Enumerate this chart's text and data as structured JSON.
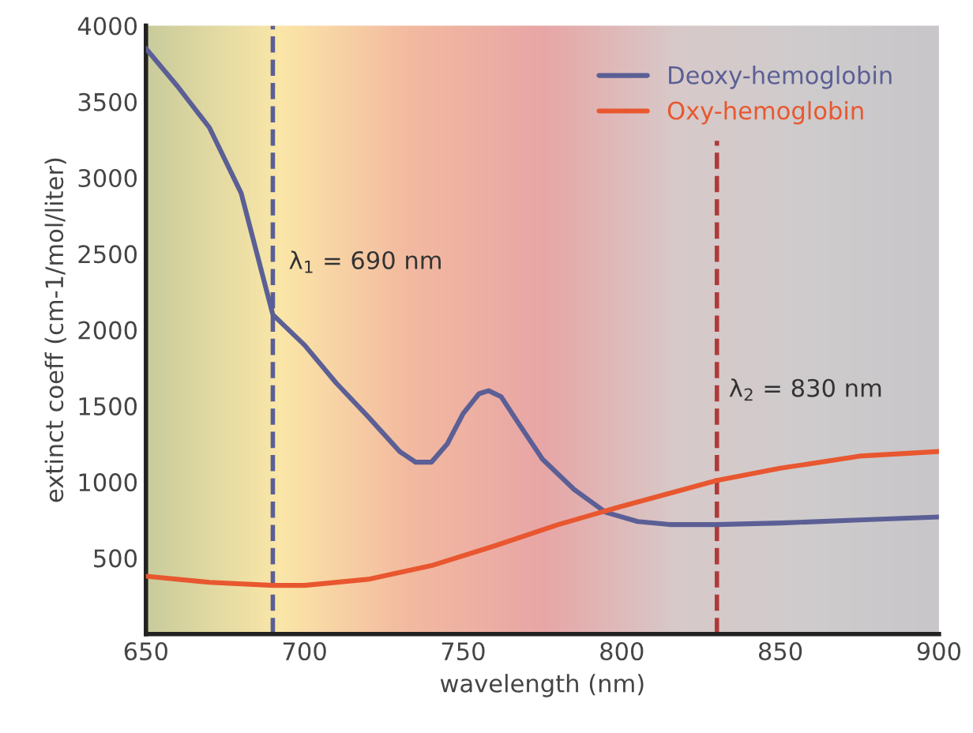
{
  "chart_data": {
    "type": "line",
    "xlabel": "wavelength (nm)",
    "ylabel": "extinct coeff (cm-1/mol/liter)",
    "xlim": [
      650,
      900
    ],
    "xticks": [
      650,
      700,
      750,
      800,
      850,
      900
    ],
    "ylim": [
      0,
      4000
    ],
    "yticks": [
      500,
      1000,
      1500,
      2000,
      2500,
      3000,
      3500,
      4000
    ],
    "legend": "top right",
    "grid": false,
    "line_style": "solid",
    "series": [
      {
        "name": "Deoxy-hemoglobin",
        "color": "#5b5f95",
        "x": [
          650,
          660,
          670,
          680,
          690,
          700,
          710,
          720,
          730,
          735,
          740,
          745,
          750,
          755,
          758,
          762,
          767,
          775,
          785,
          795,
          805,
          815,
          830,
          850,
          875,
          900
        ],
        "values": [
          3850,
          3600,
          3330,
          2900,
          2100,
          1900,
          1650,
          1430,
          1200,
          1130,
          1130,
          1250,
          1450,
          1580,
          1600,
          1560,
          1400,
          1150,
          950,
          800,
          740,
          720,
          720,
          730,
          750,
          770
        ]
      },
      {
        "name": "Oxy-hemoglobin",
        "color": "#e8572f",
        "x": [
          650,
          670,
          690,
          700,
          720,
          740,
          760,
          780,
          800,
          830,
          850,
          875,
          900
        ],
        "values": [
          380,
          340,
          320,
          320,
          360,
          450,
          580,
          720,
          840,
          1010,
          1090,
          1170,
          1200
        ]
      }
    ],
    "ref_lines": [
      {
        "axis": "x",
        "value": 690,
        "label": "λ$_{1}$ = 690 nm",
        "color": "#5b5f95",
        "line_style": "dashed"
      },
      {
        "axis": "x",
        "value": 830,
        "label": "λ$_{2}$ = 830 nm",
        "color": "#b03a3a",
        "line_style": "dashed"
      }
    ]
  }
}
